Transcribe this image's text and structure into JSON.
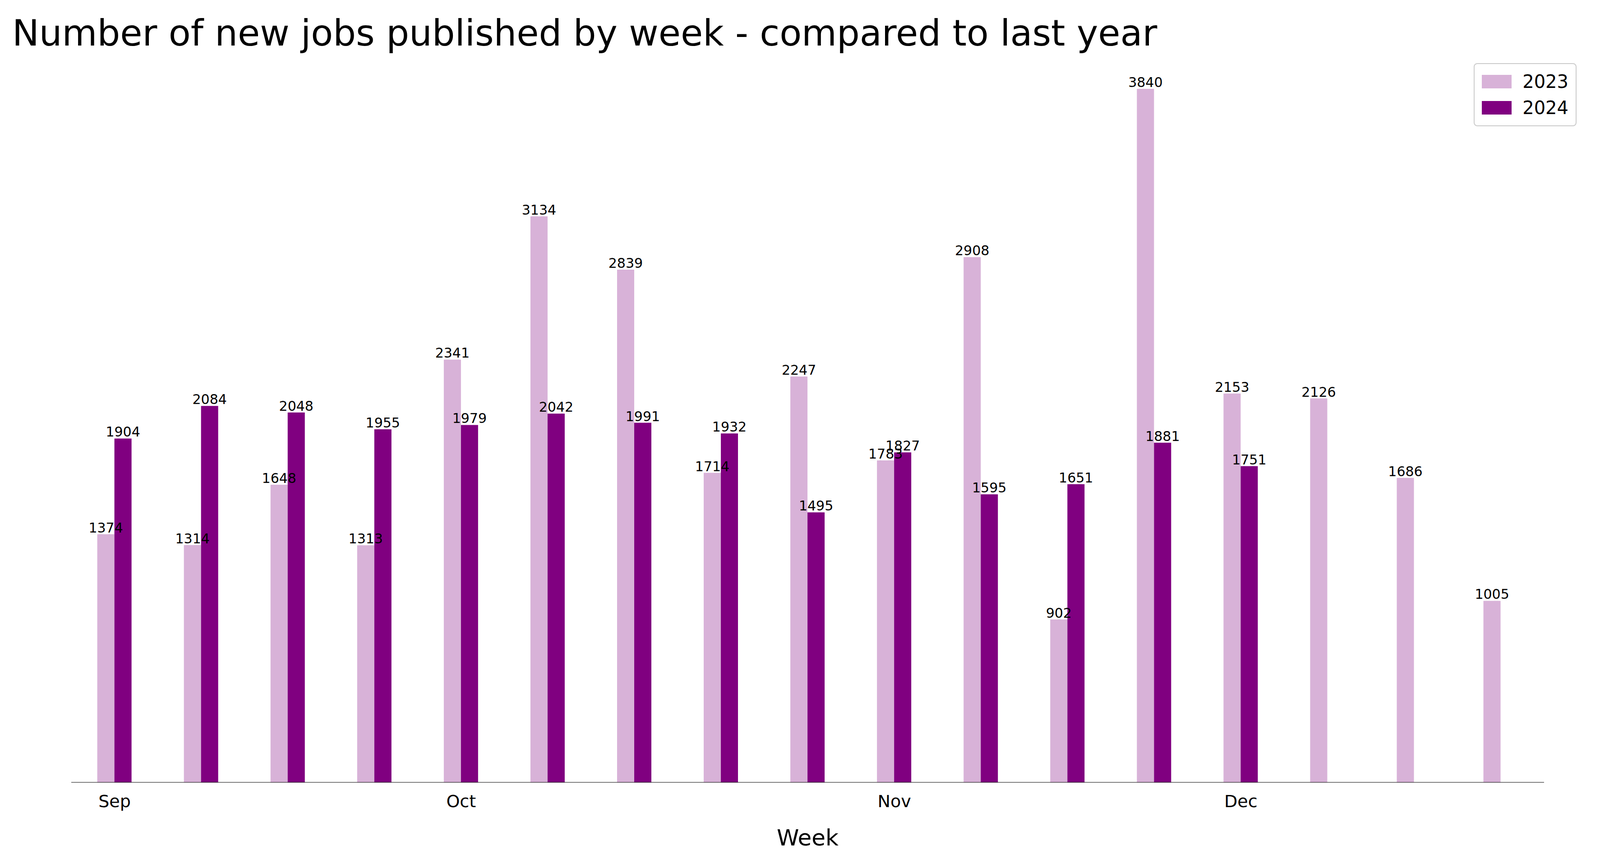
{
  "chart_data": {
    "type": "bar",
    "title": "Number of new jobs published by week - compared to last year",
    "x_label": "Week",
    "categories": [
      "Sep",
      null,
      null,
      null,
      "Oct",
      null,
      null,
      null,
      null,
      "Nov",
      null,
      null,
      null,
      "Dec",
      null,
      null,
      null
    ],
    "series": [
      {
        "name": "2023",
        "color": "#d8b2d8",
        "values": [
          1374,
          1314,
          1648,
          1313,
          2341,
          3134,
          2839,
          1714,
          2247,
          1783,
          2908,
          902,
          3840,
          2153,
          2126,
          1686,
          1005
        ]
      },
      {
        "name": "2024",
        "color": "#800080",
        "values": [
          1904,
          2084,
          2048,
          1955,
          1979,
          2042,
          1991,
          1932,
          1495,
          1827,
          1595,
          1651,
          1881,
          1751,
          null,
          null,
          null
        ]
      }
    ],
    "ylim": [
      0,
      4000
    ],
    "grid": false,
    "legend": "upper right",
    "data_labels": true,
    "tick_labels": "x"
  }
}
